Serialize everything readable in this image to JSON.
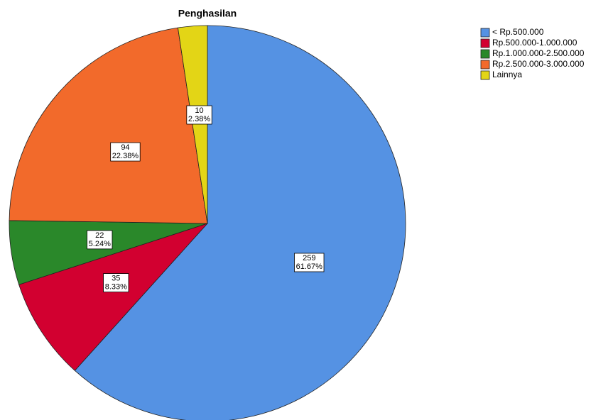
{
  "chart_data": {
    "type": "pie",
    "title": "Penghasilan",
    "categories": [
      "< Rp.500.000",
      "Rp.500.000-1.000.000",
      "Rp.1.000.000-2.500.000",
      "Rp.2.500.000-3.000.000",
      "Lainnya"
    ],
    "values": [
      259,
      35,
      22,
      94,
      10
    ],
    "percent_labels": [
      "61.67%",
      "8.33%",
      "5.24%",
      "22.38%",
      "2.38%"
    ],
    "colors": [
      "#5592e3",
      "#d20030",
      "#2a882a",
      "#f26a2b",
      "#e3d516"
    ],
    "legend": "right"
  }
}
